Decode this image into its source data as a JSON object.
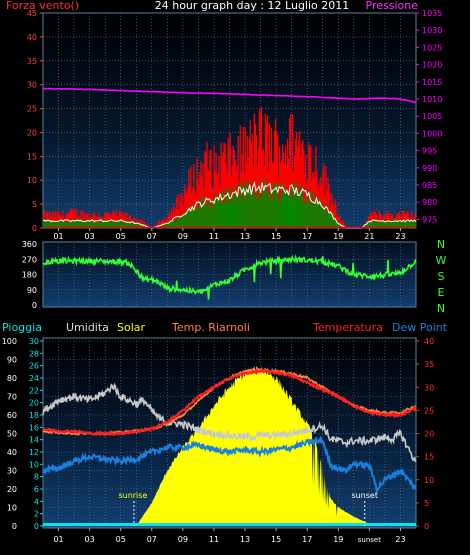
{
  "header": {
    "left_label": "Forza vento()",
    "title": "24 hour graph day : 12 Luglio 2011",
    "right_label": "Pressione"
  },
  "hour_ticks": [
    "01",
    "03",
    "05",
    "07",
    "09",
    "11",
    "13",
    "15",
    "17",
    "19",
    "21",
    "23"
  ],
  "bottom_hour_ticks": [
    "01",
    "03",
    "05",
    "07",
    "09",
    "11",
    "13",
    "15",
    "17",
    "19",
    "sunset",
    "23"
  ],
  "compass": [
    "N",
    "W",
    "S",
    "E",
    "N"
  ],
  "legend": {
    "pioggia": "Pioggia",
    "umidita": "Umidita",
    "solar": "Solar",
    "riarnoli": "Temp. Riarnoli",
    "temperatura": "Temperatura",
    "dewpoint": "Dew Point"
  },
  "annotations": {
    "sunrise": "sunrise",
    "sunset": "sunset"
  },
  "colors": {
    "wind_gust": "#ff0000",
    "wind_avg": "#ffffff",
    "wind_low": "#008800",
    "pressure": "#ff00ff",
    "direction": "#33ff33",
    "humidity": "#c8c8c8",
    "solar": "#ffff00",
    "riarnoli": "#ff8040",
    "temperature": "#ff2020",
    "dewpoint": "#1a80dd",
    "rain": "#00e8e8",
    "grid": "#5a7fa0",
    "axis_left": "#ff4040",
    "axis_right": "#ff00ff"
  },
  "chart_data": [
    {
      "type": "bar",
      "name_panel": "wind",
      "y_left_ticks": [
        0,
        5,
        10,
        15,
        20,
        25,
        30,
        35,
        40,
        45
      ],
      "y_right_ticks": [
        975,
        980,
        985,
        990,
        995,
        1000,
        1005,
        1010,
        1015,
        1020,
        1025,
        1030,
        1035
      ],
      "ylim": [
        0,
        45
      ],
      "y2lim": [
        972.5,
        1035
      ],
      "xlim": [
        0,
        24
      ],
      "gust_knots": [
        [
          0,
          3
        ],
        [
          1,
          3
        ],
        [
          2,
          3.5
        ],
        [
          3,
          3
        ],
        [
          4,
          3
        ],
        [
          5,
          3
        ],
        [
          6,
          2
        ],
        [
          7,
          0
        ],
        [
          8,
          3
        ],
        [
          8.5,
          5
        ],
        [
          9,
          8
        ],
        [
          9.5,
          11
        ],
        [
          10,
          13
        ],
        [
          10.5,
          15
        ],
        [
          11,
          14
        ],
        [
          11.5,
          16
        ],
        [
          12,
          16
        ],
        [
          12.5,
          17
        ],
        [
          13,
          18
        ],
        [
          13.5,
          20
        ],
        [
          14,
          21
        ],
        [
          14.5,
          20
        ],
        [
          15,
          19
        ],
        [
          15.5,
          19
        ],
        [
          16,
          20
        ],
        [
          16.5,
          19
        ],
        [
          17,
          17
        ],
        [
          17.5,
          15
        ],
        [
          18,
          12
        ],
        [
          18.5,
          8
        ],
        [
          19,
          3
        ],
        [
          19.5,
          0
        ],
        [
          20.5,
          0
        ],
        [
          21,
          3
        ],
        [
          22,
          3
        ],
        [
          23,
          3
        ],
        [
          24,
          3
        ]
      ],
      "avg_knots": [
        [
          0,
          1.5
        ],
        [
          1,
          1.5
        ],
        [
          2,
          1.5
        ],
        [
          3,
          1.5
        ],
        [
          4,
          1.5
        ],
        [
          5,
          1.5
        ],
        [
          6,
          1
        ],
        [
          7,
          0
        ],
        [
          8,
          1
        ],
        [
          9,
          3
        ],
        [
          10,
          5
        ],
        [
          11,
          6
        ],
        [
          12,
          7
        ],
        [
          13,
          8
        ],
        [
          14,
          8.5
        ],
        [
          15,
          8
        ],
        [
          16,
          8
        ],
        [
          17,
          7
        ],
        [
          18,
          5
        ],
        [
          19,
          1
        ],
        [
          19.5,
          0
        ],
        [
          20.5,
          0
        ],
        [
          21,
          1.5
        ],
        [
          22,
          1.5
        ],
        [
          23,
          1.5
        ],
        [
          24,
          1.5
        ]
      ],
      "pressure_knots": [
        [
          0,
          1013
        ],
        [
          3,
          1012.8
        ],
        [
          6,
          1012.3
        ],
        [
          9,
          1011.8
        ],
        [
          12,
          1011.5
        ],
        [
          15,
          1011
        ],
        [
          18,
          1010.5
        ],
        [
          20,
          1010
        ],
        [
          22,
          1010.3
        ],
        [
          23,
          1010
        ],
        [
          24,
          1009
        ]
      ]
    },
    {
      "type": "line",
      "name_panel": "direction",
      "y_ticks": [
        0,
        90,
        180,
        270,
        360
      ],
      "ylim": [
        0,
        360
      ],
      "xlim": [
        0,
        24
      ],
      "direction_knots": [
        [
          0,
          250
        ],
        [
          1,
          260
        ],
        [
          3,
          260
        ],
        [
          5,
          255
        ],
        [
          5.5,
          250
        ],
        [
          6,
          200
        ],
        [
          6.5,
          150
        ],
        [
          7,
          150
        ],
        [
          7.5,
          130
        ],
        [
          8,
          100
        ],
        [
          9,
          90
        ],
        [
          10,
          75
        ],
        [
          10.5,
          90
        ],
        [
          11,
          120
        ],
        [
          12,
          145
        ],
        [
          13,
          210
        ],
        [
          14,
          250
        ],
        [
          15,
          260
        ],
        [
          16,
          270
        ],
        [
          17,
          265
        ],
        [
          18,
          255
        ],
        [
          19,
          230
        ],
        [
          20,
          180
        ],
        [
          21,
          170
        ],
        [
          22,
          175
        ],
        [
          23,
          190
        ],
        [
          24,
          260
        ]
      ]
    },
    {
      "type": "area",
      "name_panel": "meteo",
      "y_left_ticks": [
        0,
        10,
        20,
        30,
        40,
        50,
        60,
        70,
        80,
        90,
        100
      ],
      "y_mid_ticks": [
        0,
        2,
        4,
        6,
        8,
        10,
        12,
        14,
        16,
        18,
        20,
        22,
        24,
        26,
        28,
        30
      ],
      "y_right_ticks": [
        0,
        5,
        10,
        15,
        20,
        25,
        30,
        35,
        40
      ],
      "ylim_left": [
        0,
        100
      ],
      "ylim_right": [
        0,
        40
      ],
      "xlim": [
        0,
        24
      ],
      "humidity_knots": [
        [
          0,
          62
        ],
        [
          1,
          68
        ],
        [
          2,
          70
        ],
        [
          3,
          68
        ],
        [
          4,
          72
        ],
        [
          4.5,
          76
        ],
        [
          5,
          70
        ],
        [
          6,
          66
        ],
        [
          6.5,
          68
        ],
        [
          7,
          62
        ],
        [
          7.5,
          58
        ],
        [
          8,
          56
        ],
        [
          9,
          55
        ],
        [
          10,
          52
        ],
        [
          11,
          50
        ],
        [
          12,
          49
        ],
        [
          13,
          48
        ],
        [
          14,
          49
        ],
        [
          15,
          49
        ],
        [
          16,
          50
        ],
        [
          17,
          52
        ],
        [
          18,
          54
        ],
        [
          18.5,
          47
        ],
        [
          19,
          46
        ],
        [
          19.5,
          45
        ],
        [
          20,
          46
        ],
        [
          21,
          46
        ],
        [
          22,
          48
        ],
        [
          22.5,
          47
        ],
        [
          23,
          50
        ],
        [
          24,
          34
        ]
      ],
      "solar_knots": [
        [
          0,
          0
        ],
        [
          5,
          0
        ],
        [
          6,
          0
        ],
        [
          7,
          5
        ],
        [
          8,
          12
        ],
        [
          9,
          17
        ],
        [
          10,
          21
        ],
        [
          11,
          26
        ],
        [
          12,
          30
        ],
        [
          13,
          33
        ],
        [
          14,
          34
        ],
        [
          15,
          32
        ],
        [
          16,
          27
        ],
        [
          17,
          22
        ],
        [
          17.5,
          19
        ],
        [
          18,
          12
        ],
        [
          18.5,
          6
        ],
        [
          19,
          4
        ],
        [
          19.5,
          3
        ],
        [
          20,
          2
        ],
        [
          21,
          0.5
        ],
        [
          22,
          0
        ],
        [
          24,
          0
        ]
      ],
      "riarnoli_knots": [
        [
          0,
          20.5
        ],
        [
          2,
          20
        ],
        [
          4,
          20
        ],
        [
          6,
          20.5
        ],
        [
          7,
          21
        ],
        [
          8,
          22
        ],
        [
          9,
          24
        ],
        [
          10,
          27
        ],
        [
          11,
          30
        ],
        [
          12,
          32
        ],
        [
          13,
          33.5
        ],
        [
          14,
          33.8
        ],
        [
          15,
          33.5
        ],
        [
          16,
          33
        ],
        [
          17,
          32
        ],
        [
          18,
          30
        ],
        [
          19,
          28
        ],
        [
          20,
          26
        ],
        [
          21,
          25
        ],
        [
          22,
          24.5
        ],
        [
          23,
          24.5
        ],
        [
          24,
          26
        ]
      ],
      "temperature_knots": [
        [
          0,
          21
        ],
        [
          1,
          20.5
        ],
        [
          2,
          20.5
        ],
        [
          3,
          20
        ],
        [
          4,
          20
        ],
        [
          5,
          20
        ],
        [
          6,
          20.5
        ],
        [
          7,
          21
        ],
        [
          8,
          22.5
        ],
        [
          9,
          25
        ],
        [
          10,
          28
        ],
        [
          11,
          30
        ],
        [
          12,
          32
        ],
        [
          13,
          33
        ],
        [
          14,
          33.5
        ],
        [
          15,
          33.2
        ],
        [
          16,
          32.5
        ],
        [
          17,
          31
        ],
        [
          18,
          29.5
        ],
        [
          19,
          28
        ],
        [
          20,
          26
        ],
        [
          21,
          24.5
        ],
        [
          22,
          24
        ],
        [
          23,
          24
        ],
        [
          24,
          25.5
        ]
      ],
      "dewpoint_knots": [
        [
          0,
          12
        ],
        [
          1,
          12.5
        ],
        [
          2,
          14
        ],
        [
          3,
          15
        ],
        [
          4,
          14.5
        ],
        [
          5,
          14
        ],
        [
          6,
          14.5
        ],
        [
          7,
          16
        ],
        [
          8,
          17
        ],
        [
          9,
          17
        ],
        [
          10,
          17.5
        ],
        [
          11,
          16.5
        ],
        [
          12,
          16
        ],
        [
          13,
          16.5
        ],
        [
          14,
          16
        ],
        [
          15,
          16.5
        ],
        [
          16,
          17
        ],
        [
          17,
          18
        ],
        [
          18,
          18.5
        ],
        [
          18.5,
          13
        ],
        [
          19,
          12.5
        ],
        [
          19.5,
          12
        ],
        [
          20,
          13.5
        ],
        [
          21,
          13
        ],
        [
          21.5,
          8
        ],
        [
          22,
          10
        ],
        [
          23,
          12
        ],
        [
          24,
          8
        ]
      ],
      "rain_mm": 0
    }
  ]
}
